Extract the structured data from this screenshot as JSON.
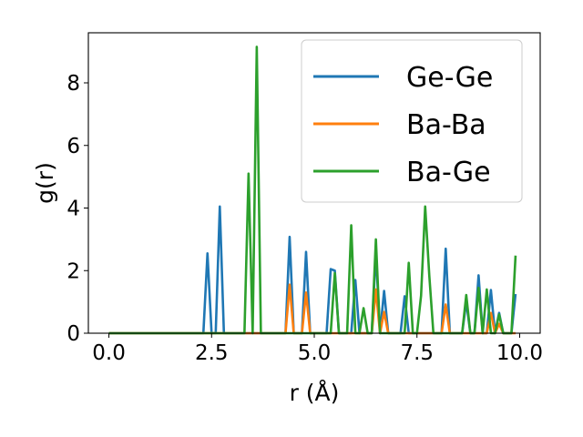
{
  "chart_data": {
    "type": "line",
    "xlabel": "r (Å)",
    "ylabel": "g(r)",
    "xlim": [
      -0.5,
      10.5
    ],
    "ylim": [
      0,
      9.6
    ],
    "xticks": [
      0.0,
      2.5,
      5.0,
      7.5,
      10.0
    ],
    "xtick_labels": [
      "0.0",
      "2.5",
      "5.0",
      "7.5",
      "10.0"
    ],
    "yticks": [
      0,
      2,
      4,
      6,
      8
    ],
    "ytick_labels": [
      "0",
      "2",
      "4",
      "6",
      "8"
    ],
    "grid": false,
    "legend_position": "top-right",
    "x": [
      0.0,
      0.1,
      0.2,
      0.3,
      0.4,
      0.5,
      0.6,
      0.7,
      0.8,
      0.9,
      1.0,
      1.1,
      1.2,
      1.3,
      1.4,
      1.5,
      1.6,
      1.7,
      1.8,
      1.9,
      2.0,
      2.1,
      2.2,
      2.3,
      2.4,
      2.5,
      2.6,
      2.7,
      2.8,
      2.9,
      3.0,
      3.1,
      3.2,
      3.3,
      3.4,
      3.5,
      3.6,
      3.7,
      3.8,
      3.9,
      4.0,
      4.1,
      4.2,
      4.3,
      4.4,
      4.5,
      4.6,
      4.7,
      4.8,
      4.9,
      5.0,
      5.1,
      5.2,
      5.3,
      5.4,
      5.5,
      5.6,
      5.7,
      5.8,
      5.9,
      6.0,
      6.1,
      6.2,
      6.3,
      6.4,
      6.5,
      6.6,
      6.7,
      6.8,
      6.9,
      7.0,
      7.1,
      7.2,
      7.3,
      7.4,
      7.5,
      7.6,
      7.7,
      7.8,
      7.9,
      8.0,
      8.1,
      8.2,
      8.3,
      8.4,
      8.5,
      8.6,
      8.7,
      8.8,
      8.9,
      9.0,
      9.1,
      9.2,
      9.3,
      9.4,
      9.5,
      9.6,
      9.7,
      9.8,
      9.9
    ],
    "series": [
      {
        "name": "Ge-Ge",
        "color": "#1f77b4",
        "values": [
          0,
          0,
          0,
          0,
          0,
          0,
          0,
          0,
          0,
          0,
          0,
          0,
          0,
          0,
          0,
          0,
          0,
          0,
          0,
          0,
          0,
          0,
          0,
          0,
          2.55,
          0,
          0,
          4.05,
          0,
          0,
          0,
          0,
          0,
          0,
          0,
          0,
          0,
          0,
          0,
          0,
          0,
          0,
          0,
          0,
          3.08,
          0,
          0,
          0,
          2.6,
          0,
          0,
          0,
          0,
          0,
          2.05,
          2.0,
          0,
          0,
          0,
          0,
          1.7,
          0,
          0,
          0,
          0,
          2.6,
          0,
          1.35,
          0,
          0,
          0,
          0,
          1.18,
          0,
          0,
          0,
          0,
          0,
          0,
          0,
          0,
          0,
          2.7,
          0,
          0,
          0,
          0,
          1.0,
          0,
          0,
          1.85,
          0,
          0,
          1.38,
          0,
          0.65,
          0,
          0,
          0,
          1.25
        ]
      },
      {
        "name": "Ba-Ba",
        "color": "#ff7f0e",
        "values": [
          0,
          0,
          0,
          0,
          0,
          0,
          0,
          0,
          0,
          0,
          0,
          0,
          0,
          0,
          0,
          0,
          0,
          0,
          0,
          0,
          0,
          0,
          0,
          0,
          0,
          0,
          0,
          0,
          0,
          0,
          0,
          0,
          0,
          0,
          0,
          0,
          0,
          0,
          0,
          0,
          0,
          0,
          0,
          0,
          1.55,
          0,
          0,
          0,
          1.3,
          0,
          0,
          0,
          0,
          0,
          0,
          0,
          0,
          0,
          0,
          0,
          0,
          0,
          0,
          0,
          0,
          1.4,
          0,
          0.68,
          0,
          0,
          0,
          0,
          0,
          0,
          0,
          0,
          0,
          0,
          0,
          0,
          0,
          0,
          0.92,
          0,
          0,
          0,
          0,
          0,
          0,
          0,
          0,
          0,
          0,
          0.65,
          0,
          0.3,
          0,
          0,
          0,
          0
        ]
      },
      {
        "name": "Ba-Ge",
        "color": "#2ca02c",
        "values": [
          0,
          0,
          0,
          0,
          0,
          0,
          0,
          0,
          0,
          0,
          0,
          0,
          0,
          0,
          0,
          0,
          0,
          0,
          0,
          0,
          0,
          0,
          0,
          0,
          0,
          0,
          0,
          0,
          0,
          0,
          0,
          0,
          0,
          0,
          5.1,
          0,
          9.15,
          0,
          0,
          0,
          0,
          0,
          0,
          0,
          0,
          0,
          0,
          0,
          0,
          0,
          0,
          0,
          0,
          0,
          0,
          1.92,
          0,
          0,
          0,
          3.45,
          0,
          0,
          0.8,
          0,
          0,
          3.0,
          0,
          0,
          0,
          0,
          0,
          0,
          0,
          2.25,
          0,
          0,
          1.2,
          4.05,
          1.85,
          0,
          0,
          0,
          0,
          0,
          0,
          0,
          0,
          1.22,
          0,
          0,
          1.45,
          0,
          1.4,
          0,
          0,
          0.6,
          0,
          0,
          0,
          2.48
        ]
      }
    ]
  }
}
